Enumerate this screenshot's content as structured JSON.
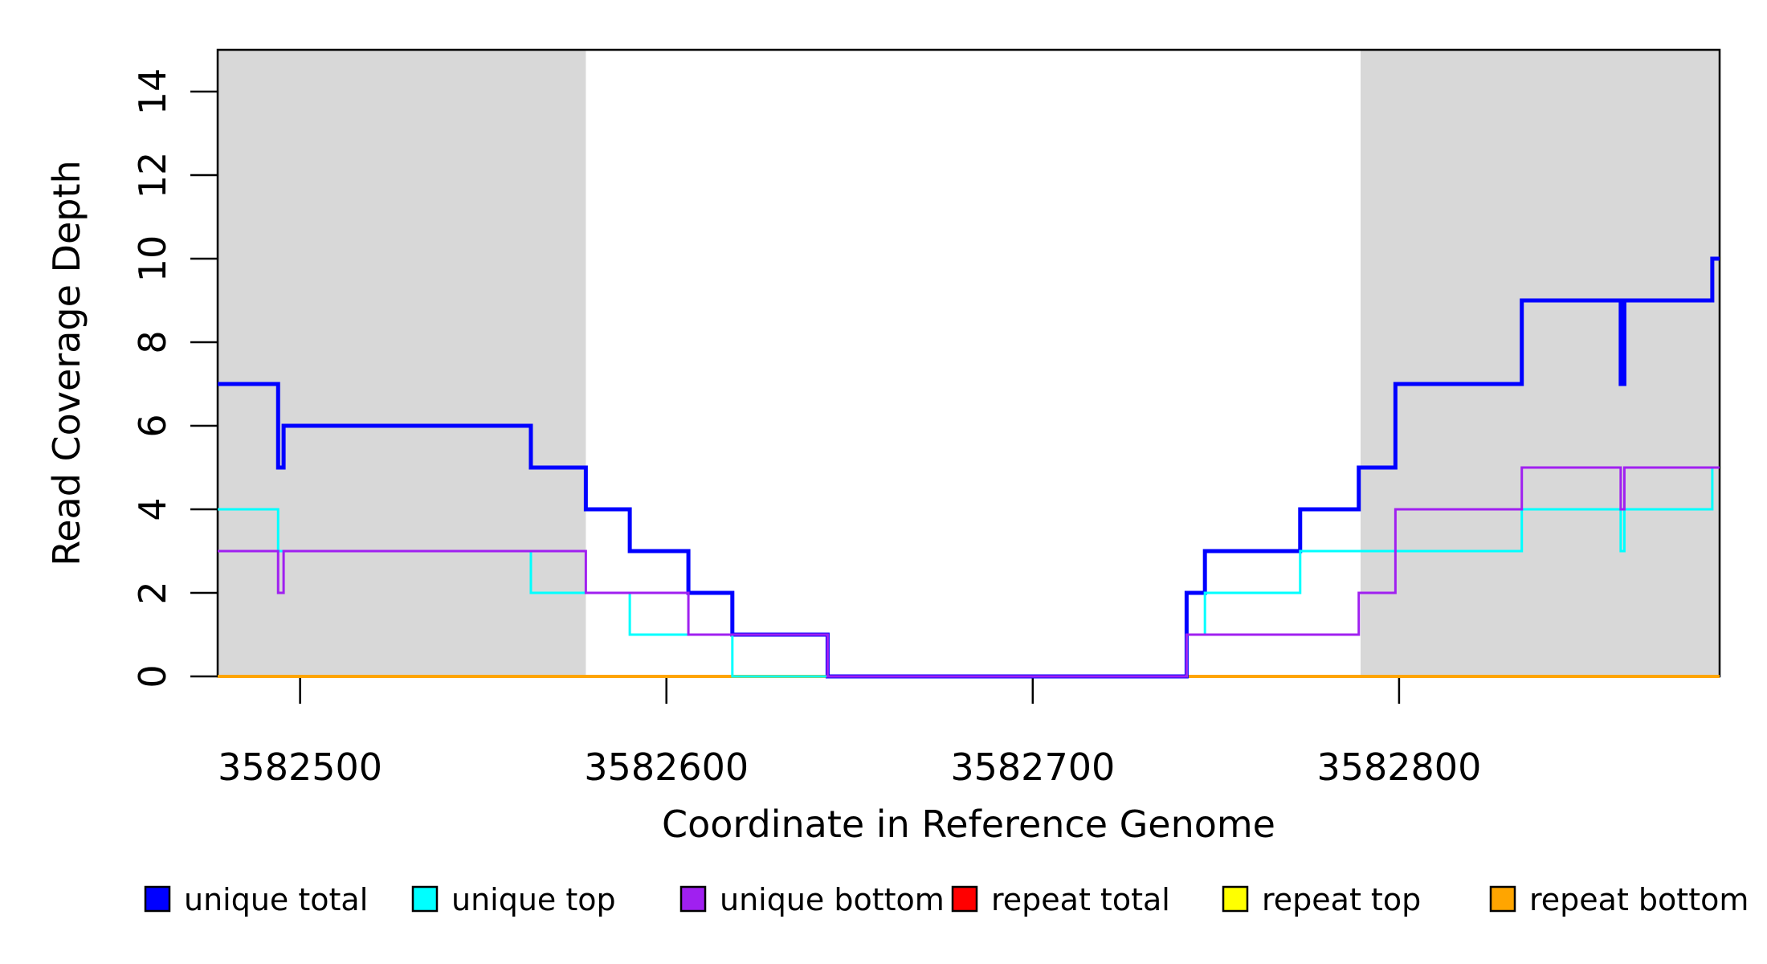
{
  "chart_data": {
    "type": "step-line",
    "title": "",
    "xlabel": "Coordinate in Reference Genome",
    "ylabel": "Read Coverage Depth",
    "xlim": [
      3582477.5,
      3582887.5
    ],
    "ylim": [
      0,
      15
    ],
    "xticks": [
      3582500,
      3582600,
      3582700,
      3582800
    ],
    "yticks": [
      0,
      2,
      4,
      6,
      8,
      10,
      12,
      14
    ],
    "grid": "off",
    "shading_color": "#D8D8D8",
    "shaded_regions": [
      {
        "name": "repeat-region-left",
        "from": 3582477.5,
        "to": 3582578.0
      },
      {
        "name": "repeat-region-right",
        "from": 3582789.5,
        "to": 3582887.5
      }
    ],
    "series_end_x": 3582887.5,
    "series": [
      {
        "name": "repeat total",
        "color": "#FF0000",
        "width": 3,
        "steps": [
          [
            3582477.5,
            0
          ]
        ]
      },
      {
        "name": "repeat top",
        "color": "#FFFF00",
        "width": 3,
        "steps": [
          [
            3582477.5,
            0
          ]
        ]
      },
      {
        "name": "repeat bottom",
        "color": "#FFA500",
        "width": 4,
        "steps": [
          [
            3582477.5,
            0
          ]
        ]
      },
      {
        "name": "unique total",
        "color": "#0000FF",
        "width": 5,
        "steps": [
          [
            3582477.5,
            7
          ],
          [
            3582494,
            5
          ],
          [
            3582495.5,
            6
          ],
          [
            3582563,
            5
          ],
          [
            3582578,
            4
          ],
          [
            3582590,
            3
          ],
          [
            3582606,
            2
          ],
          [
            3582618,
            1
          ],
          [
            3582644,
            0
          ],
          [
            3582742,
            2
          ],
          [
            3582747,
            3
          ],
          [
            3582773,
            4
          ],
          [
            3582789,
            5
          ],
          [
            3582799,
            7
          ],
          [
            3582833.5,
            9
          ],
          [
            3582860.5,
            7
          ],
          [
            3582861.5,
            9
          ],
          [
            3582885.5,
            10
          ]
        ]
      },
      {
        "name": "unique top",
        "color": "#00FFFF",
        "width": 3,
        "steps": [
          [
            3582477.5,
            4
          ],
          [
            3582494,
            3
          ],
          [
            3582563,
            2
          ],
          [
            3582590,
            1
          ],
          [
            3582618,
            0
          ],
          [
            3582742,
            1
          ],
          [
            3582747,
            2
          ],
          [
            3582773,
            3
          ],
          [
            3582833.5,
            4
          ],
          [
            3582860.5,
            3
          ],
          [
            3582861.5,
            4
          ],
          [
            3582885.5,
            5
          ]
        ]
      },
      {
        "name": "unique bottom",
        "color": "#A020F0",
        "width": 3,
        "steps": [
          [
            3582477.5,
            3
          ],
          [
            3582494,
            2
          ],
          [
            3582495.5,
            3
          ],
          [
            3582578,
            2
          ],
          [
            3582606,
            1
          ],
          [
            3582644,
            0
          ],
          [
            3582742,
            1
          ],
          [
            3582789,
            2
          ],
          [
            3582799,
            4
          ],
          [
            3582833.5,
            5
          ],
          [
            3582860.5,
            4
          ],
          [
            3582861.5,
            5
          ]
        ]
      }
    ],
    "legend": {
      "position": "bottom",
      "entries": [
        {
          "label": "unique total",
          "color": "#0000FF"
        },
        {
          "label": "unique top",
          "color": "#00FFFF"
        },
        {
          "label": "unique bottom",
          "color": "#A020F0"
        },
        {
          "label": "repeat total",
          "color": "#FF0000"
        },
        {
          "label": "repeat top",
          "color": "#FFFF00"
        },
        {
          "label": "repeat bottom",
          "color": "#FFA500"
        }
      ]
    }
  }
}
